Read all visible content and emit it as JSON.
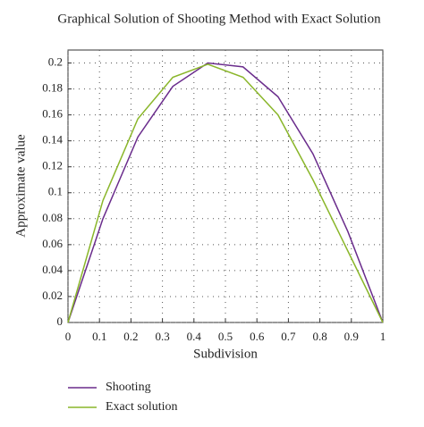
{
  "chart_data": {
    "type": "line",
    "title": "Graphical Solution of Shooting Method with Exact Solution",
    "x_label": "Subdivision",
    "y_label": "Approximate value",
    "x": [
      0,
      0.111,
      0.222,
      0.333,
      0.444,
      0.556,
      0.667,
      0.778,
      0.889,
      1
    ],
    "series": [
      {
        "name": "Shooting",
        "color": "#6a2c8c",
        "values": [
          0,
          0.08,
          0.143,
          0.182,
          0.2,
          0.197,
          0.174,
          0.13,
          0.07,
          0
        ]
      },
      {
        "name": "Exact solution",
        "color": "#8ab62a",
        "values": [
          0,
          0.094,
          0.157,
          0.189,
          0.199,
          0.189,
          0.16,
          0.11,
          0.055,
          0
        ]
      }
    ],
    "xlim": [
      0,
      1
    ],
    "ylim": [
      0,
      0.21
    ],
    "xticks": [
      0,
      0.1,
      0.2,
      0.3,
      0.4,
      0.5,
      0.6,
      0.7,
      0.8,
      0.9,
      1
    ],
    "yticks": [
      0,
      0.02,
      0.04,
      0.06,
      0.08,
      0.1,
      0.12,
      0.14,
      0.16,
      0.18,
      0.2
    ],
    "grid": true,
    "legend": "bottom-left"
  }
}
